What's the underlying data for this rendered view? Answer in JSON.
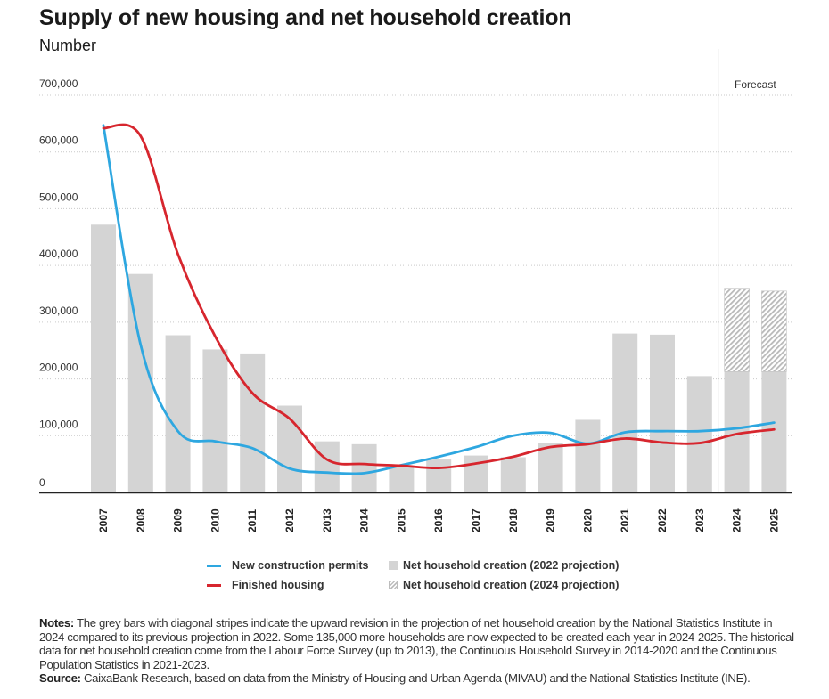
{
  "chart_data": {
    "type": "bar+line",
    "title": "Supply of new housing and net household creation",
    "subtitle": "Number",
    "categories": [
      "2007",
      "2008",
      "2009",
      "2010",
      "2011",
      "2012",
      "2013",
      "2014",
      "2015",
      "2016",
      "2017",
      "2018",
      "2019",
      "2020",
      "2021",
      "2022",
      "2023",
      "2024",
      "2025"
    ],
    "yticks": [
      "700,000",
      "600,000",
      "500,000",
      "400,000",
      "300,000",
      "200,000",
      "100,000",
      "0"
    ],
    "ylim": [
      0,
      700000
    ],
    "grid": "horizontal dotted",
    "forecast_label": "Forecast",
    "forecast_start": "2024",
    "series": [
      {
        "name": "Net household creation (2022 projection)",
        "kind": "bar",
        "color": "#d4d4d4",
        "values": [
          472000,
          385000,
          277000,
          252000,
          245000,
          153000,
          90000,
          85000,
          47000,
          58000,
          65000,
          62000,
          87000,
          128000,
          280000,
          278000,
          205000,
          213000,
          213000
        ]
      },
      {
        "name": "Net household creation (2024 projection)",
        "kind": "bar-hatched",
        "color": "#bdbdbd",
        "values": [
          null,
          null,
          null,
          null,
          null,
          null,
          null,
          null,
          null,
          null,
          null,
          null,
          null,
          null,
          null,
          null,
          null,
          360000,
          355000
        ]
      },
      {
        "name": "New construction permits",
        "kind": "line",
        "color": "#2ea7e0",
        "values": [
          647000,
          260000,
          108000,
          90000,
          78000,
          42000,
          35000,
          34000,
          48000,
          63000,
          80000,
          100000,
          105000,
          86000,
          106000,
          108000,
          108000,
          113000,
          123000
        ]
      },
      {
        "name": "Finished housing",
        "kind": "line",
        "color": "#d7262e",
        "values": [
          642000,
          628000,
          420000,
          275000,
          175000,
          130000,
          58000,
          50000,
          47000,
          43000,
          51000,
          63000,
          80000,
          85000,
          95000,
          88000,
          87000,
          103000,
          111000
        ]
      }
    ]
  },
  "legend": {
    "permits": "New construction permits",
    "finished": "Finished housing",
    "proj2022": "Net household creation (2022 projection)",
    "proj2024": "Net household creation (2024 projection)"
  },
  "notes": {
    "notes_label": "Notes:",
    "notes_text": "The grey bars with diagonal stripes indicate the upward revision in the projection of net household creation by the National Statistics Institute in 2024 compared to its previous projection in 2022. Some 135,000 more households are now expected to be created each year in 2024-2025. The historical data for net household creation come from the Labour Force Survey (up to 2013), the Continuous Household Survey in 2014-2020 and the Continuous Population Statistics in 2021-2023.",
    "source_label": "Source:",
    "source_text": "CaixaBank Research, based on data from the Ministry of Housing and Urban Agenda (MIVAU) and the National Statistics Institute (INE)."
  }
}
